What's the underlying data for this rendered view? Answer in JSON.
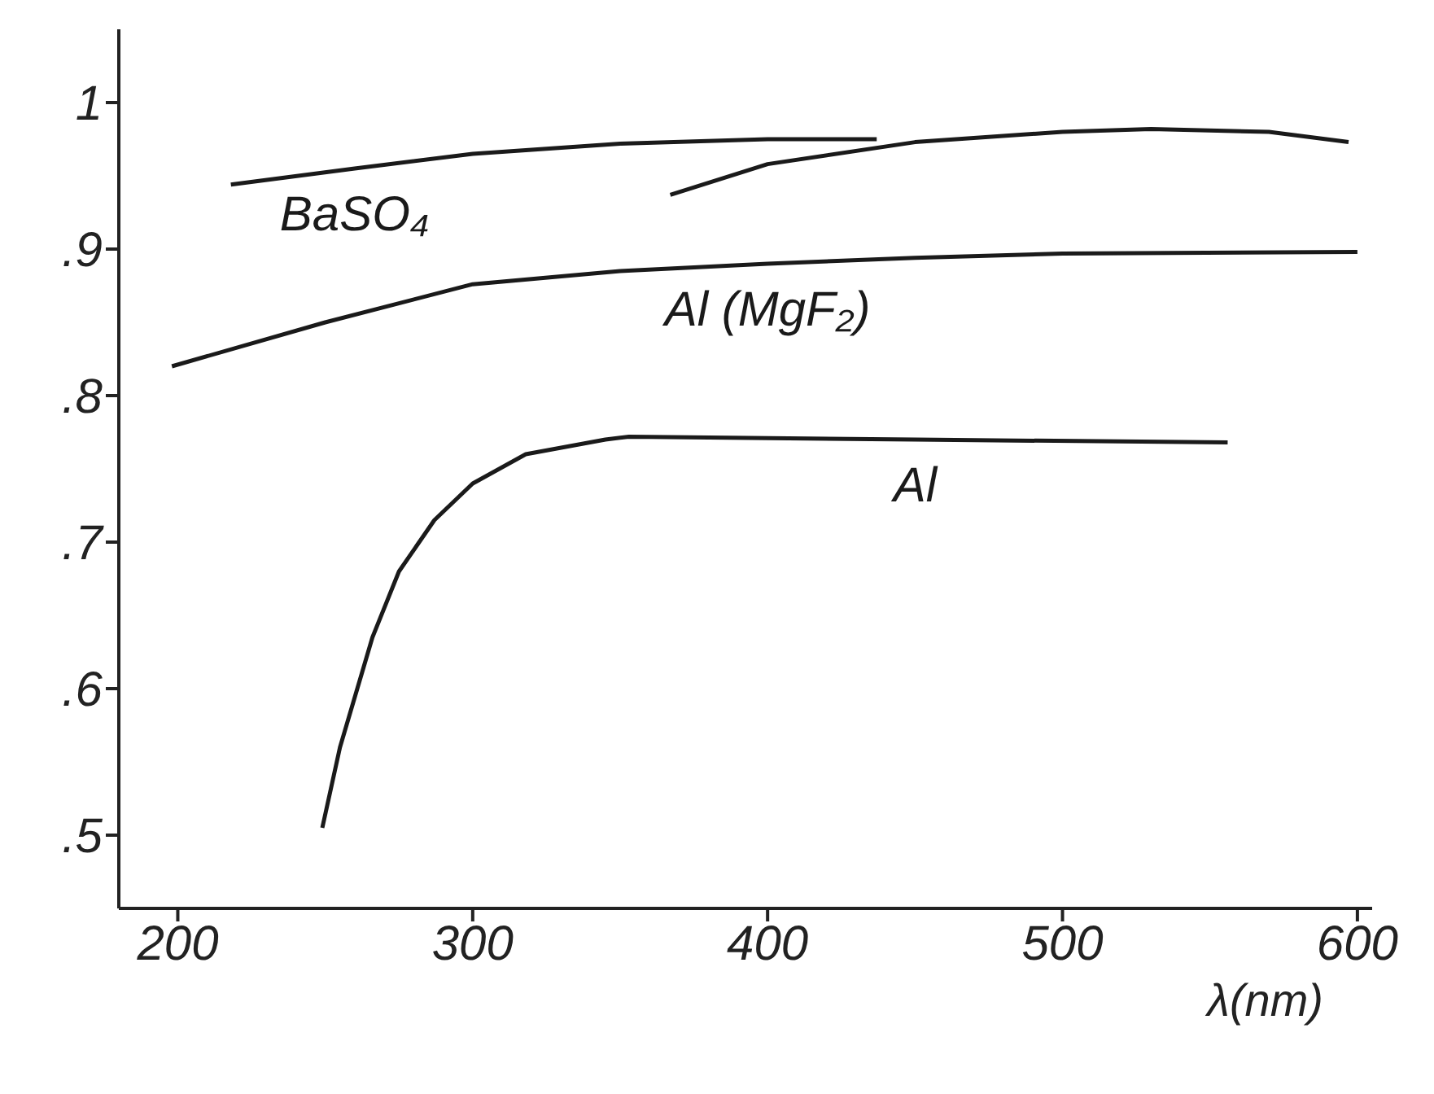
{
  "chart_data": {
    "type": "line",
    "xlabel": "λ(nm)",
    "xlim": [
      180,
      605
    ],
    "xticks": [
      200,
      300,
      400,
      500,
      600
    ],
    "ylim": [
      0.45,
      1.05
    ],
    "yticks": [
      {
        "value": 0.5,
        "label": ".5"
      },
      {
        "value": 0.6,
        "label": ".6"
      },
      {
        "value": 0.7,
        "label": ".7"
      },
      {
        "value": 0.8,
        "label": ".8"
      },
      {
        "value": 0.9,
        "label": ".9"
      },
      {
        "value": 1,
        "label": "1"
      }
    ],
    "grid": false,
    "legend": false,
    "marker": "none",
    "line_style": "solid",
    "series": [
      {
        "name": "BaSO₄",
        "color": "#1a1a1a",
        "x": [
          218,
          260,
          300,
          350,
          400,
          437
        ],
        "values": [
          0.944,
          0.955,
          0.965,
          0.972,
          0.975,
          0.975
        ]
      },
      {
        "color": "#1a1a1a",
        "x": [
          367,
          400,
          450,
          500,
          530,
          570,
          597
        ],
        "values": [
          0.937,
          0.958,
          0.973,
          0.98,
          0.982,
          0.98,
          0.973
        ]
      },
      {
        "name": "Al (MgF₂)",
        "color": "#1a1a1a",
        "x": [
          198,
          250,
          300,
          350,
          400,
          450,
          500,
          600
        ],
        "values": [
          0.82,
          0.85,
          0.876,
          0.885,
          0.89,
          0.894,
          0.897,
          0.898
        ]
      },
      {
        "name": "Al",
        "color": "#1a1a1a",
        "x": [
          249,
          255,
          266,
          275,
          287,
          300,
          318,
          345,
          353,
          450,
          556
        ],
        "values": [
          0.505,
          0.56,
          0.635,
          0.68,
          0.715,
          0.74,
          0.76,
          0.77,
          0.772,
          0.77,
          0.768
        ]
      }
    ]
  }
}
